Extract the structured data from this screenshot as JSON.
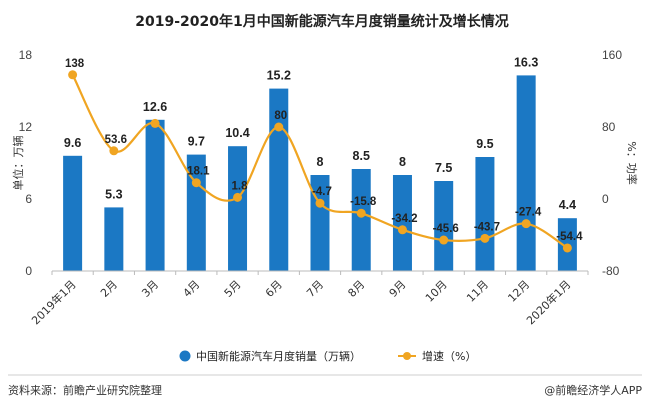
{
  "chart_data": {
    "type": "bar+line",
    "title": "2019-2020年1月中国新能源汽车月度销量统计及增长情况",
    "categories": [
      "2019年1月",
      "2月",
      "3月",
      "4月",
      "5月",
      "6月",
      "7月",
      "8月",
      "9月",
      "10月",
      "11月",
      "12月",
      "2020年1月"
    ],
    "series": [
      {
        "name": "中国新能源汽车月度销量（万辆）",
        "type": "bar",
        "axis": "left",
        "color": "#1b78c4",
        "values": [
          9.6,
          5.3,
          12.6,
          9.7,
          10.4,
          15.2,
          8,
          8.5,
          8,
          7.5,
          9.5,
          16.3,
          4.4
        ],
        "labels": [
          "9.6",
          "5.3",
          "12.6",
          "9.7",
          "10.4",
          "15.2",
          "8",
          "8.5",
          "8",
          "7.5",
          "9.5",
          "16.3",
          "4.4"
        ]
      },
      {
        "name": "增速（%）",
        "type": "line",
        "axis": "right",
        "color": "#f0a522",
        "values": [
          138,
          53.6,
          84,
          18.1,
          1.8,
          80,
          -4.7,
          -15.8,
          -34.2,
          -45.6,
          -43.7,
          -27.4,
          -54.4
        ],
        "labels": [
          "138",
          "53.6",
          "",
          "18.1",
          "1.8",
          "80",
          "-4.7",
          "-15.8",
          "-34.2",
          "-45.6",
          "-43.7",
          "-27.4",
          "-54.4"
        ]
      }
    ],
    "ylabel": "单位：万辆",
    "y2label": "%：功率",
    "ylim": [
      0,
      18
    ],
    "yticks": [
      0,
      6,
      12,
      18
    ],
    "y2lim": [
      -80,
      160
    ],
    "y2ticks": [
      -80,
      0,
      80,
      160
    ]
  },
  "footer": {
    "source": "资料来源：前瞻产业研究院整理",
    "brand": "@前瞻经济学人APP"
  }
}
